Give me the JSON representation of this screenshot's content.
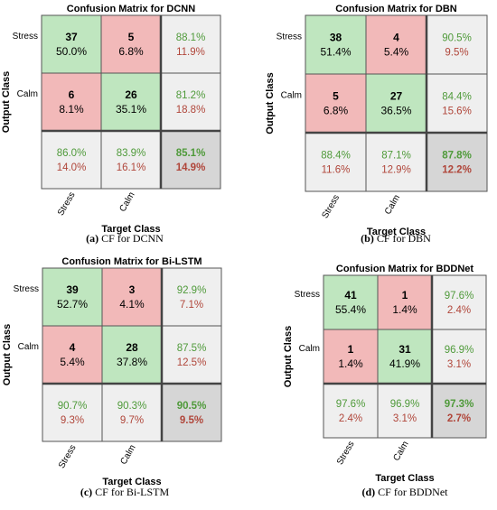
{
  "chart_data": [
    {
      "type": "heatmap",
      "title": "Confusion Matrix for DCNN",
      "caption_label": "(a)",
      "caption_text": "CF for DCNN",
      "xlabel": "Target Class",
      "ylabel": "Output Class",
      "classes": [
        "Stress",
        "Calm"
      ],
      "counts": [
        [
          37,
          5
        ],
        [
          6,
          26
        ]
      ],
      "cell_pct": [
        [
          "50.0%",
          "6.8%"
        ],
        [
          "8.1%",
          "35.1%"
        ]
      ],
      "row_summary": [
        [
          "88.1%",
          "11.9%"
        ],
        [
          "81.2%",
          "18.8%"
        ]
      ],
      "col_summary": [
        [
          "86.0%",
          "14.0%"
        ],
        [
          "83.9%",
          "16.1%"
        ]
      ],
      "overall": [
        "85.1%",
        "14.9%"
      ]
    },
    {
      "type": "heatmap",
      "title": "Confusion Matrix for DBN",
      "caption_label": "(b)",
      "caption_text": "CF for DBN",
      "xlabel": "Target Class",
      "ylabel": "Output Class",
      "classes": [
        "Stress",
        "Calm"
      ],
      "counts": [
        [
          38,
          4
        ],
        [
          5,
          27
        ]
      ],
      "cell_pct": [
        [
          "51.4%",
          "5.4%"
        ],
        [
          "6.8%",
          "36.5%"
        ]
      ],
      "row_summary": [
        [
          "90.5%",
          "9.5%"
        ],
        [
          "84.4%",
          "15.6%"
        ]
      ],
      "col_summary": [
        [
          "88.4%",
          "11.6%"
        ],
        [
          "87.1%",
          "12.9%"
        ]
      ],
      "overall": [
        "87.8%",
        "12.2%"
      ]
    },
    {
      "type": "heatmap",
      "title": "Confusion Matrix for Bi-LSTM",
      "caption_label": "(c)",
      "caption_text": "CF for Bi-LSTM",
      "xlabel": "Target Class",
      "ylabel": "Output Class",
      "classes": [
        "Stress",
        "Calm"
      ],
      "counts": [
        [
          39,
          3
        ],
        [
          4,
          28
        ]
      ],
      "cell_pct": [
        [
          "52.7%",
          "4.1%"
        ],
        [
          "5.4%",
          "37.8%"
        ]
      ],
      "row_summary": [
        [
          "92.9%",
          "7.1%"
        ],
        [
          "87.5%",
          "12.5%"
        ]
      ],
      "col_summary": [
        [
          "90.7%",
          "9.3%"
        ],
        [
          "90.3%",
          "9.7%"
        ]
      ],
      "overall": [
        "90.5%",
        "9.5%"
      ]
    },
    {
      "type": "heatmap",
      "title": "Confusion Matrix for BDDNet",
      "caption_label": "(d)",
      "caption_text": "CF for BDDNet",
      "xlabel": "Target Class",
      "ylabel": "Output Class",
      "classes": [
        "Stress",
        "Calm"
      ],
      "counts": [
        [
          41,
          1
        ],
        [
          1,
          31
        ]
      ],
      "cell_pct": [
        [
          "55.4%",
          "1.4%"
        ],
        [
          "1.4%",
          "41.9%"
        ]
      ],
      "row_summary": [
        [
          "97.6%",
          "2.4%"
        ],
        [
          "96.9%",
          "3.1%"
        ]
      ],
      "col_summary": [
        [
          "97.6%",
          "2.4%"
        ],
        [
          "96.9%",
          "3.1%"
        ]
      ],
      "overall": [
        "97.3%",
        "2.7%"
      ]
    }
  ],
  "colors": {
    "diagonal": "#bfe6bf",
    "off_diagonal": "#f2b9b9",
    "summary": "#efefef",
    "overall": "#d6d6d6",
    "green_text": "#4f9a3a",
    "red_text": "#b0463a",
    "grid": "#555555"
  }
}
